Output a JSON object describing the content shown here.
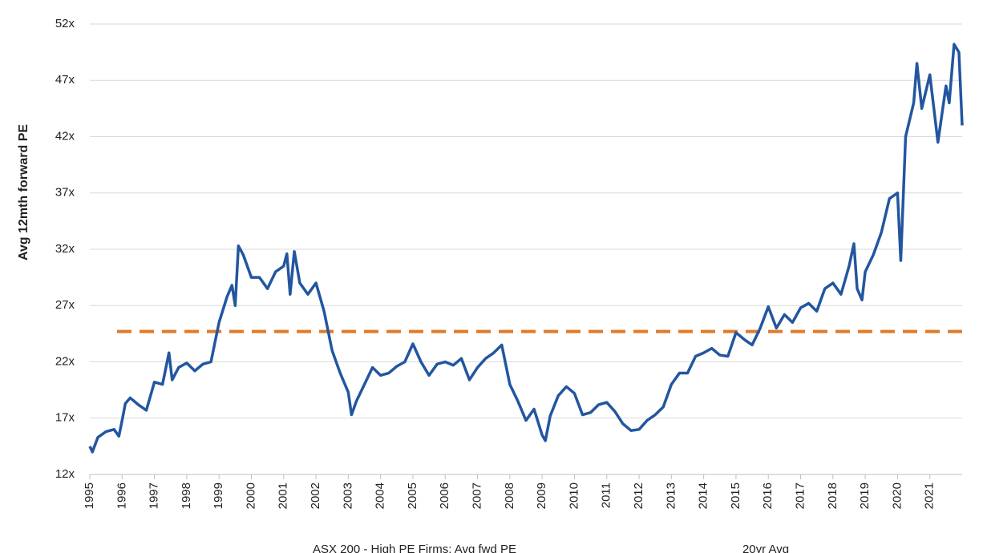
{
  "chart_data": {
    "type": "line",
    "ylabel": "Avg 12mth forward PE",
    "x": [
      1995.0,
      1995.08,
      1995.25,
      1995.5,
      1995.75,
      1995.9,
      1996.0,
      1996.1,
      1996.25,
      1996.5,
      1996.75,
      1997.0,
      1997.25,
      1997.45,
      1997.55,
      1997.75,
      1998.0,
      1998.25,
      1998.5,
      1998.75,
      1999.0,
      1999.25,
      1999.4,
      1999.5,
      1999.6,
      1999.75,
      2000.0,
      2000.25,
      2000.5,
      2000.75,
      2001.0,
      2001.1,
      2001.2,
      2001.33,
      2001.5,
      2001.75,
      2002.0,
      2002.25,
      2002.5,
      2002.75,
      2003.0,
      2003.1,
      2003.25,
      2003.5,
      2003.75,
      2004.0,
      2004.25,
      2004.5,
      2004.75,
      2005.0,
      2005.25,
      2005.5,
      2005.75,
      2006.0,
      2006.25,
      2006.5,
      2006.75,
      2007.0,
      2007.25,
      2007.5,
      2007.75,
      2008.0,
      2008.25,
      2008.5,
      2008.75,
      2009.0,
      2009.1,
      2009.25,
      2009.5,
      2009.75,
      2010.0,
      2010.25,
      2010.5,
      2010.75,
      2011.0,
      2011.25,
      2011.5,
      2011.75,
      2012.0,
      2012.25,
      2012.5,
      2012.75,
      2013.0,
      2013.25,
      2013.5,
      2013.75,
      2014.0,
      2014.25,
      2014.5,
      2014.75,
      2015.0,
      2015.25,
      2015.5,
      2015.75,
      2016.0,
      2016.25,
      2016.5,
      2016.75,
      2017.0,
      2017.25,
      2017.5,
      2017.75,
      2018.0,
      2018.25,
      2018.5,
      2018.65,
      2018.75,
      2018.9,
      2019.0,
      2019.25,
      2019.5,
      2019.75,
      2020.0,
      2020.1,
      2020.25,
      2020.5,
      2020.6,
      2020.75,
      2021.0,
      2021.25,
      2021.5,
      2021.6,
      2021.75,
      2021.9,
      2022.0
    ],
    "series": [
      {
        "name": "ASX 200 - High PE Firms: Avg fwd PE",
        "color": "#2356a0",
        "values": [
          14.5,
          14.0,
          15.3,
          15.8,
          16.0,
          15.4,
          16.8,
          18.3,
          18.8,
          18.2,
          17.7,
          20.2,
          20.0,
          22.8,
          20.4,
          21.5,
          21.9,
          21.2,
          21.8,
          22.0,
          25.5,
          27.8,
          28.8,
          27.0,
          32.3,
          31.5,
          29.5,
          29.5,
          28.5,
          30.0,
          30.5,
          31.6,
          28.0,
          31.8,
          29.0,
          28.0,
          29.0,
          26.5,
          23.0,
          21.0,
          19.3,
          17.3,
          18.5,
          20.0,
          21.5,
          20.8,
          21.0,
          21.6,
          22.0,
          23.6,
          22.0,
          20.8,
          21.8,
          22.0,
          21.7,
          22.3,
          20.4,
          21.5,
          22.3,
          22.8,
          23.5,
          20.0,
          18.5,
          16.8,
          17.8,
          15.5,
          15.0,
          17.2,
          19.0,
          19.8,
          19.2,
          17.3,
          17.5,
          18.2,
          18.4,
          17.6,
          16.5,
          15.9,
          16.0,
          16.8,
          17.3,
          18.0,
          20.0,
          21.0,
          21.0,
          22.5,
          22.8,
          23.2,
          22.6,
          22.5,
          24.6,
          24.0,
          23.5,
          25.0,
          26.9,
          25.0,
          26.2,
          25.5,
          26.8,
          27.2,
          26.5,
          28.5,
          29.0,
          28.0,
          30.5,
          32.5,
          28.5,
          27.5,
          30.0,
          31.5,
          33.5,
          36.5,
          37.0,
          31.0,
          42.0,
          45.0,
          48.5,
          44.5,
          47.5,
          41.5,
          46.5,
          45.0,
          50.2,
          49.5,
          43.0
        ]
      }
    ],
    "reference": {
      "name": "20yr Avg",
      "color": "#e07b2a",
      "value": 24.7
    },
    "xlim": [
      1995,
      2022
    ],
    "xticks": [
      1995,
      1996,
      1997,
      1998,
      1999,
      2000,
      2001,
      2002,
      2003,
      2004,
      2005,
      2006,
      2007,
      2008,
      2009,
      2010,
      2011,
      2012,
      2013,
      2014,
      2015,
      2016,
      2017,
      2018,
      2019,
      2020,
      2021
    ],
    "ylim": [
      12,
      52
    ],
    "yticks": [
      {
        "value": 12,
        "label": "12x"
      },
      {
        "value": 17,
        "label": "17x"
      },
      {
        "value": 22,
        "label": "22x"
      },
      {
        "value": 27,
        "label": "27x"
      },
      {
        "value": 32,
        "label": "32x"
      },
      {
        "value": 37,
        "label": "37x"
      },
      {
        "value": 42,
        "label": "42x"
      },
      {
        "value": 47,
        "label": "47x"
      },
      {
        "value": 52,
        "label": "52x"
      }
    ],
    "grid": true
  }
}
